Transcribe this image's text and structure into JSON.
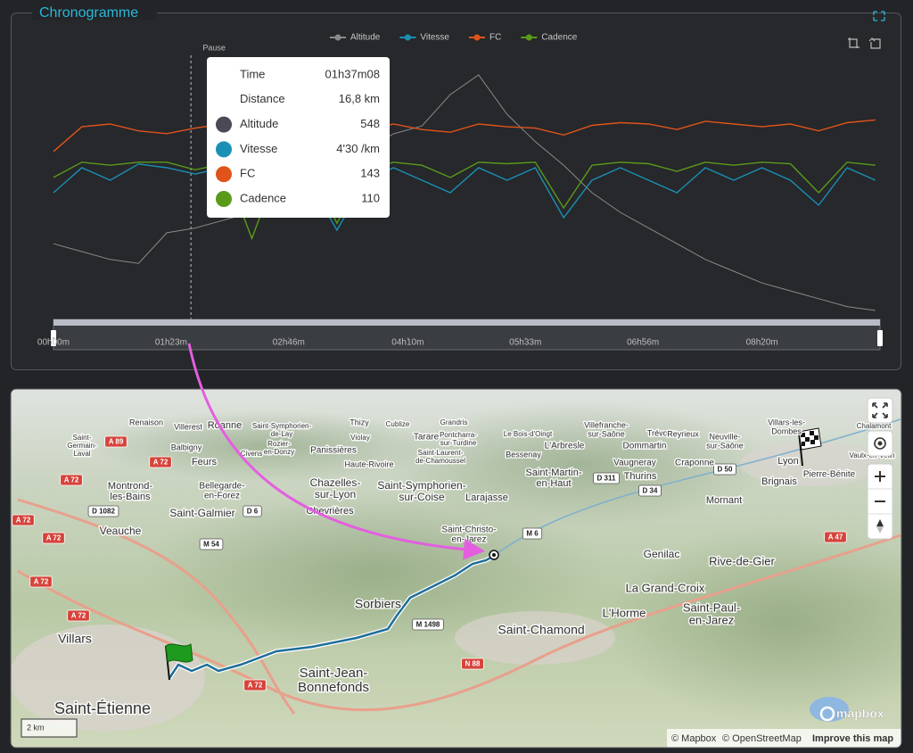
{
  "chart_data": {
    "type": "line",
    "title": "Chronogramme",
    "x": [
      0,
      20,
      40,
      60,
      80,
      100,
      120,
      140,
      160,
      180,
      200,
      220,
      240,
      260,
      280,
      300,
      320,
      340,
      360,
      380,
      400,
      420,
      440,
      460,
      480,
      500,
      520,
      540,
      560,
      580
    ],
    "xlim": [
      0,
      582
    ],
    "xticks": [
      {
        "value": 0,
        "label": "00h00m"
      },
      {
        "value": 83,
        "label": "01h23m"
      },
      {
        "value": 166,
        "label": "02h46m"
      },
      {
        "value": 250,
        "label": "04h10m"
      },
      {
        "value": 333,
        "label": "05h33m"
      },
      {
        "value": 416,
        "label": "06h56m"
      },
      {
        "value": 500,
        "label": "08h20m"
      }
    ],
    "pause": {
      "label": "Pause",
      "x": 97
    },
    "series": [
      {
        "name": "Altitude",
        "color": "#8a8a8a",
        "ylim": [
          300,
          1000
        ],
        "values": [
          520,
          500,
          480,
          470,
          548,
          560,
          580,
          600,
          620,
          650,
          700,
          760,
          800,
          820,
          900,
          950,
          850,
          780,
          720,
          650,
          600,
          560,
          520,
          480,
          450,
          420,
          400,
          380,
          360,
          350
        ]
      },
      {
        "name": "Vitesse",
        "color": "#1a8fb5",
        "ylim": [
          0,
          22
        ],
        "values": [
          11,
          13,
          12,
          13.3,
          13,
          12.5,
          13,
          10,
          13,
          12,
          8,
          12,
          13,
          12,
          11,
          13,
          12,
          13,
          9,
          12,
          13,
          12,
          11,
          13,
          12,
          13,
          12,
          10,
          13,
          12
        ]
      },
      {
        "name": "FC",
        "color": "#e0531b",
        "ylim": [
          0,
          200
        ],
        "values": [
          130,
          148,
          150,
          145,
          143,
          147,
          150,
          149,
          146,
          148,
          140,
          145,
          150,
          146,
          144,
          150,
          148,
          147,
          142,
          149,
          151,
          150,
          146,
          152,
          150,
          148,
          150,
          145,
          151,
          153
        ]
      },
      {
        "name": "Cadence",
        "color": "#5a9a1a",
        "ylim": [
          0,
          180
        ],
        "values": [
          100,
          110,
          108,
          110,
          110,
          105,
          109,
          60,
          110,
          108,
          70,
          105,
          110,
          108,
          100,
          110,
          109,
          110,
          80,
          108,
          110,
          109,
          104,
          110,
          108,
          110,
          109,
          90,
          110,
          108
        ]
      }
    ],
    "tooltip": {
      "rows": [
        {
          "label": "Time",
          "value": "01h37m08"
        },
        {
          "label": "Distance",
          "value": "16,8 km"
        },
        {
          "label": "Altitude",
          "value": 548
        },
        {
          "label": "Vitesse",
          "value": "4'30 /km"
        },
        {
          "label": "FC",
          "value": 143
        },
        {
          "label": "Cadence",
          "value": 110
        }
      ]
    }
  },
  "map": {
    "places": [
      [
        "Renaison"
      ],
      [
        "Villerest"
      ],
      [
        "Roanne"
      ],
      [
        "Saint-Symphorien-",
        "de-Lay"
      ],
      [
        "Thizy"
      ],
      [
        "Cublize"
      ],
      [
        "Grandris"
      ],
      [
        "Villefranche-",
        "sur-Saône"
      ],
      [
        "Trévoux"
      ],
      [
        "Reyrieux"
      ],
      [
        "Neuville-",
        "sur-Saône"
      ],
      [
        "Villars-les-",
        "Dombes"
      ],
      [
        "Chalamont"
      ],
      [
        "Saint-",
        "Germain-",
        "Laval"
      ],
      [
        "Balbigny"
      ],
      [
        "Rozier-",
        "en-Donzy"
      ],
      [
        "Panissières"
      ],
      [
        "Violay"
      ],
      [
        "Tarare"
      ],
      [
        "Pontcharra-",
        "sur-Turdine"
      ],
      [
        "Le Bois-d'Oingt"
      ],
      [
        "L'Arbresle"
      ],
      [
        "Dommartin"
      ],
      [
        "Feurs"
      ],
      [
        "Civens"
      ],
      [
        "Haute-Rivoire"
      ],
      [
        "Saint-Laurent-",
        "de-Chamoussel"
      ],
      [
        "Bessenay"
      ],
      [
        "Vaugneray"
      ],
      [
        "Craponne"
      ],
      [
        "Lyon"
      ],
      [
        "Pierre-Bénite"
      ],
      [
        "Vaulx-en-Velin"
      ],
      [
        "Montrond-",
        "les-Bains"
      ],
      [
        "Bellegarde-",
        "en-Forez"
      ],
      [
        "Chazelles-",
        "sur-Lyon"
      ],
      [
        "Saint-Symphorien-",
        "sur-Coise"
      ],
      [
        "Larajasse"
      ],
      [
        "Saint-Martin-",
        "en-Haut"
      ],
      [
        "Thurins"
      ],
      [
        "Brignais"
      ],
      [
        "Mornant"
      ],
      [
        "Saint-Galmier"
      ],
      [
        "Chevrières"
      ],
      [
        "Veauche"
      ],
      [
        "Saint-Christo-",
        "en-Jarez"
      ],
      [
        "Genilac"
      ],
      [
        "Rive-de-Gier"
      ],
      [
        "La Grand-Croix"
      ],
      [
        "Sorbiers"
      ],
      [
        "L'Horme"
      ],
      [
        "Saint-Paul-",
        "en-Jarez"
      ],
      [
        "Saint-Chamond"
      ],
      [
        "Villars"
      ],
      [
        "Saint-Jean-",
        "Bonnefonds"
      ],
      [
        "Saint-Étienne"
      ]
    ],
    "roads": [
      "A 89",
      "A 72",
      "A 72",
      "D 1082",
      "D 6",
      "M 54",
      "M 6",
      "D 311",
      "D 34",
      "D 50",
      "A 47",
      "A 72",
      "A 72",
      "A 72",
      "A 72",
      "M 1498",
      "N 88",
      "A 72"
    ],
    "scale": "2 km",
    "logo": "mapbox",
    "attribution": [
      "© Mapbox",
      "© OpenStreetMap",
      "Improve this map"
    ]
  }
}
